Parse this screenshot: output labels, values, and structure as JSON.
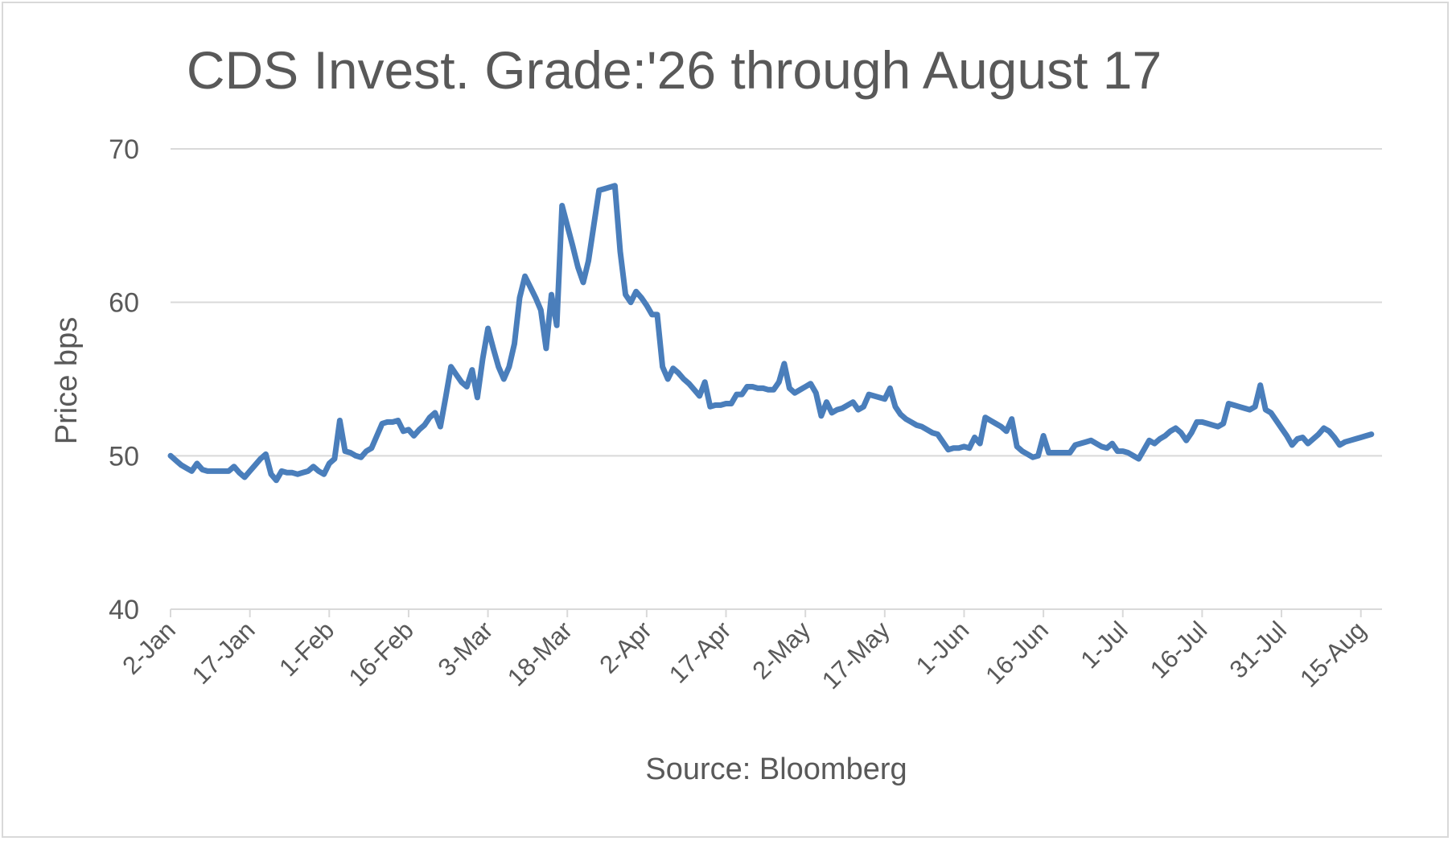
{
  "chart_data": {
    "type": "line",
    "title": "CDS Invest. Grade:'26 through August 17",
    "xlabel": "Source: Bloomberg",
    "ylabel": "Price bps",
    "ylim": [
      40,
      70
    ],
    "yticks": [
      "40",
      "50",
      "60",
      "70"
    ],
    "xlim": [
      "2-Jan",
      "19-Aug"
    ],
    "xticks": [
      {
        "label": "2-Jan",
        "date": "2-Jan"
      },
      {
        "label": "17-Jan",
        "date": "17-Jan"
      },
      {
        "label": "1-Feb",
        "date": "1-Feb"
      },
      {
        "label": "16-Feb",
        "date": "16-Feb"
      },
      {
        "label": "3-Mar",
        "date": "3-Mar"
      },
      {
        "label": "18-Mar",
        "date": "18-Mar"
      },
      {
        "label": "2-Apr",
        "date": "2-Apr"
      },
      {
        "label": "17-Apr",
        "date": "17-Apr"
      },
      {
        "label": "2-May",
        "date": "2-May"
      },
      {
        "label": "17-May",
        "date": "17-May"
      },
      {
        "label": "1-Jun",
        "date": "1-Jun"
      },
      {
        "label": "16-Jun",
        "date": "16-Jun"
      },
      {
        "label": "1-Jul",
        "date": "1-Jul"
      },
      {
        "label": "16-Jul",
        "date": "16-Jul"
      },
      {
        "label": "31-Jul",
        "date": "31-Jul"
      },
      {
        "label": "15-Aug",
        "date": "15-Aug"
      }
    ],
    "grid": true,
    "legend": "none",
    "series": [
      {
        "color": "#4a7ebb",
        "points": [
          [
            "2-Jan",
            50.0
          ],
          [
            "3-Jan",
            49.7
          ],
          [
            "4-Jan",
            49.4
          ],
          [
            "5-Jan",
            49.2
          ],
          [
            "6-Jan",
            49.0
          ],
          [
            "7-Jan",
            49.5
          ],
          [
            "8-Jan",
            49.1
          ],
          [
            "9-Jan",
            49.0
          ],
          [
            "10-Jan",
            49.0
          ],
          [
            "11-Jan",
            49.0
          ],
          [
            "12-Jan",
            49.0
          ],
          [
            "13-Jan",
            49.0
          ],
          [
            "14-Jan",
            49.3
          ],
          [
            "15-Jan",
            48.9
          ],
          [
            "16-Jan",
            48.6
          ],
          [
            "17-Jan",
            49.0
          ],
          [
            "18-Jan",
            49.4
          ],
          [
            "19-Jan",
            49.8
          ],
          [
            "20-Jan",
            50.1
          ],
          [
            "21-Jan",
            48.8
          ],
          [
            "22-Jan",
            48.4
          ],
          [
            "23-Jan",
            49.0
          ],
          [
            "24-Jan",
            48.9
          ],
          [
            "25-Jan",
            48.9
          ],
          [
            "26-Jan",
            48.8
          ],
          [
            "27-Jan",
            48.9
          ],
          [
            "28-Jan",
            49.0
          ],
          [
            "29-Jan",
            49.3
          ],
          [
            "30-Jan",
            49.0
          ],
          [
            "31-Jan",
            48.8
          ],
          [
            "1-Feb",
            49.5
          ],
          [
            "2-Feb",
            49.8
          ],
          [
            "3-Feb",
            52.3
          ],
          [
            "4-Feb",
            50.3
          ],
          [
            "5-Feb",
            50.2
          ],
          [
            "6-Feb",
            50.0
          ],
          [
            "7-Feb",
            49.9
          ],
          [
            "8-Feb",
            50.3
          ],
          [
            "9-Feb",
            50.5
          ],
          [
            "10-Feb",
            51.3
          ],
          [
            "11-Feb",
            52.1
          ],
          [
            "12-Feb",
            52.2
          ],
          [
            "13-Feb",
            52.2
          ],
          [
            "14-Feb",
            52.3
          ],
          [
            "15-Feb",
            51.6
          ],
          [
            "16-Feb",
            51.7
          ],
          [
            "17-Feb",
            51.3
          ],
          [
            "18-Feb",
            51.7
          ],
          [
            "19-Feb",
            52.0
          ],
          [
            "20-Feb",
            52.5
          ],
          [
            "21-Feb",
            52.8
          ],
          [
            "22-Feb",
            51.9
          ],
          [
            "23-Feb",
            53.8
          ],
          [
            "24-Feb",
            55.8
          ],
          [
            "25-Feb",
            55.3
          ],
          [
            "26-Feb",
            54.8
          ],
          [
            "27-Feb",
            54.5
          ],
          [
            "28-Feb",
            55.6
          ],
          [
            "1-Mar",
            53.8
          ],
          [
            "2-Mar",
            56.3
          ],
          [
            "3-Mar",
            58.3
          ],
          [
            "4-Mar",
            57.0
          ],
          [
            "5-Mar",
            55.8
          ],
          [
            "6-Mar",
            55.0
          ],
          [
            "7-Mar",
            55.8
          ],
          [
            "8-Mar",
            57.3
          ],
          [
            "9-Mar",
            60.3
          ],
          [
            "10-Mar",
            61.7
          ],
          [
            "11-Mar",
            61.0
          ],
          [
            "12-Mar",
            60.3
          ],
          [
            "13-Mar",
            59.5
          ],
          [
            "14-Mar",
            57.0
          ],
          [
            "15-Mar",
            60.5
          ],
          [
            "16-Mar",
            58.5
          ],
          [
            "17-Mar",
            66.3
          ],
          [
            "18-Mar",
            65.0
          ],
          [
            "19-Mar",
            63.7
          ],
          [
            "20-Mar",
            62.3
          ],
          [
            "21-Mar",
            61.3
          ],
          [
            "22-Mar",
            62.7
          ],
          [
            "23-Mar",
            65.0
          ],
          [
            "24-Mar",
            67.3
          ],
          [
            "25-Mar",
            67.4
          ],
          [
            "26-Mar",
            67.5
          ],
          [
            "27-Mar",
            67.6
          ],
          [
            "28-Mar",
            63.3
          ],
          [
            "29-Mar",
            60.5
          ],
          [
            "30-Mar",
            60.0
          ],
          [
            "31-Mar",
            60.7
          ],
          [
            "1-Apr",
            60.3
          ],
          [
            "2-Apr",
            59.8
          ],
          [
            "3-Apr",
            59.2
          ],
          [
            "4-Apr",
            59.2
          ],
          [
            "5-Apr",
            55.8
          ],
          [
            "6-Apr",
            55.0
          ],
          [
            "7-Apr",
            55.7
          ],
          [
            "8-Apr",
            55.4
          ],
          [
            "9-Apr",
            55.0
          ],
          [
            "10-Apr",
            54.7
          ],
          [
            "11-Apr",
            54.3
          ],
          [
            "12-Apr",
            53.9
          ],
          [
            "13-Apr",
            54.8
          ],
          [
            "14-Apr",
            53.2
          ],
          [
            "15-Apr",
            53.3
          ],
          [
            "16-Apr",
            53.3
          ],
          [
            "17-Apr",
            53.4
          ],
          [
            "18-Apr",
            53.4
          ],
          [
            "19-Apr",
            54.0
          ],
          [
            "20-Apr",
            54.0
          ],
          [
            "21-Apr",
            54.5
          ],
          [
            "22-Apr",
            54.5
          ],
          [
            "23-Apr",
            54.4
          ],
          [
            "24-Apr",
            54.4
          ],
          [
            "25-Apr",
            54.3
          ],
          [
            "26-Apr",
            54.3
          ],
          [
            "27-Apr",
            54.8
          ],
          [
            "28-Apr",
            56.0
          ],
          [
            "29-Apr",
            54.4
          ],
          [
            "30-Apr",
            54.1
          ],
          [
            "1-May",
            54.3
          ],
          [
            "2-May",
            54.5
          ],
          [
            "3-May",
            54.7
          ],
          [
            "4-May",
            54.1
          ],
          [
            "5-May",
            52.6
          ],
          [
            "6-May",
            53.5
          ],
          [
            "7-May",
            52.8
          ],
          [
            "8-May",
            53.0
          ],
          [
            "9-May",
            53.1
          ],
          [
            "10-May",
            53.3
          ],
          [
            "11-May",
            53.5
          ],
          [
            "12-May",
            53.0
          ],
          [
            "13-May",
            53.2
          ],
          [
            "14-May",
            54.0
          ],
          [
            "15-May",
            53.9
          ],
          [
            "16-May",
            53.8
          ],
          [
            "17-May",
            53.7
          ],
          [
            "18-May",
            54.4
          ],
          [
            "19-May",
            53.2
          ],
          [
            "20-May",
            52.7
          ],
          [
            "21-May",
            52.4
          ],
          [
            "22-May",
            52.2
          ],
          [
            "23-May",
            52.0
          ],
          [
            "24-May",
            51.9
          ],
          [
            "25-May",
            51.7
          ],
          [
            "26-May",
            51.5
          ],
          [
            "27-May",
            51.4
          ],
          [
            "28-May",
            50.9
          ],
          [
            "29-May",
            50.4
          ],
          [
            "30-May",
            50.5
          ],
          [
            "31-May",
            50.5
          ],
          [
            "1-Jun",
            50.6
          ],
          [
            "2-Jun",
            50.5
          ],
          [
            "3-Jun",
            51.2
          ],
          [
            "4-Jun",
            50.8
          ],
          [
            "5-Jun",
            52.5
          ],
          [
            "6-Jun",
            52.3
          ],
          [
            "7-Jun",
            52.1
          ],
          [
            "8-Jun",
            51.9
          ],
          [
            "9-Jun",
            51.6
          ],
          [
            "10-Jun",
            52.4
          ],
          [
            "11-Jun",
            50.6
          ],
          [
            "12-Jun",
            50.3
          ],
          [
            "13-Jun",
            50.1
          ],
          [
            "14-Jun",
            49.9
          ],
          [
            "15-Jun",
            50.0
          ],
          [
            "16-Jun",
            51.3
          ],
          [
            "17-Jun",
            50.2
          ],
          [
            "18-Jun",
            50.2
          ],
          [
            "19-Jun",
            50.2
          ],
          [
            "20-Jun",
            50.2
          ],
          [
            "21-Jun",
            50.2
          ],
          [
            "22-Jun",
            50.7
          ],
          [
            "23-Jun",
            50.8
          ],
          [
            "24-Jun",
            50.9
          ],
          [
            "25-Jun",
            51.0
          ],
          [
            "26-Jun",
            50.8
          ],
          [
            "27-Jun",
            50.6
          ],
          [
            "28-Jun",
            50.5
          ],
          [
            "29-Jun",
            50.8
          ],
          [
            "30-Jun",
            50.3
          ],
          [
            "1-Jul",
            50.3
          ],
          [
            "2-Jul",
            50.2
          ],
          [
            "3-Jul",
            50.0
          ],
          [
            "4-Jul",
            49.8
          ],
          [
            "5-Jul",
            50.4
          ],
          [
            "6-Jul",
            51.0
          ],
          [
            "7-Jul",
            50.8
          ],
          [
            "8-Jul",
            51.1
          ],
          [
            "9-Jul",
            51.3
          ],
          [
            "10-Jul",
            51.6
          ],
          [
            "11-Jul",
            51.8
          ],
          [
            "12-Jul",
            51.5
          ],
          [
            "13-Jul",
            51.0
          ],
          [
            "14-Jul",
            51.5
          ],
          [
            "15-Jul",
            52.2
          ],
          [
            "16-Jul",
            52.2
          ],
          [
            "17-Jul",
            52.1
          ],
          [
            "18-Jul",
            52.0
          ],
          [
            "19-Jul",
            51.9
          ],
          [
            "20-Jul",
            52.1
          ],
          [
            "21-Jul",
            53.4
          ],
          [
            "22-Jul",
            53.3
          ],
          [
            "23-Jul",
            53.2
          ],
          [
            "24-Jul",
            53.1
          ],
          [
            "25-Jul",
            53.0
          ],
          [
            "26-Jul",
            53.2
          ],
          [
            "27-Jul",
            54.6
          ],
          [
            "28-Jul",
            53.0
          ],
          [
            "29-Jul",
            52.8
          ],
          [
            "30-Jul",
            52.3
          ],
          [
            "31-Jul",
            51.8
          ],
          [
            "1-Aug",
            51.3
          ],
          [
            "2-Aug",
            50.7
          ],
          [
            "3-Aug",
            51.1
          ],
          [
            "4-Aug",
            51.2
          ],
          [
            "5-Aug",
            50.8
          ],
          [
            "6-Aug",
            51.1
          ],
          [
            "7-Aug",
            51.4
          ],
          [
            "8-Aug",
            51.8
          ],
          [
            "9-Aug",
            51.6
          ],
          [
            "10-Aug",
            51.2
          ],
          [
            "11-Aug",
            50.7
          ],
          [
            "12-Aug",
            50.9
          ],
          [
            "13-Aug",
            51.0
          ],
          [
            "14-Aug",
            51.1
          ],
          [
            "15-Aug",
            51.2
          ],
          [
            "16-Aug",
            51.3
          ],
          [
            "17-Aug",
            51.4
          ]
        ]
      }
    ]
  }
}
